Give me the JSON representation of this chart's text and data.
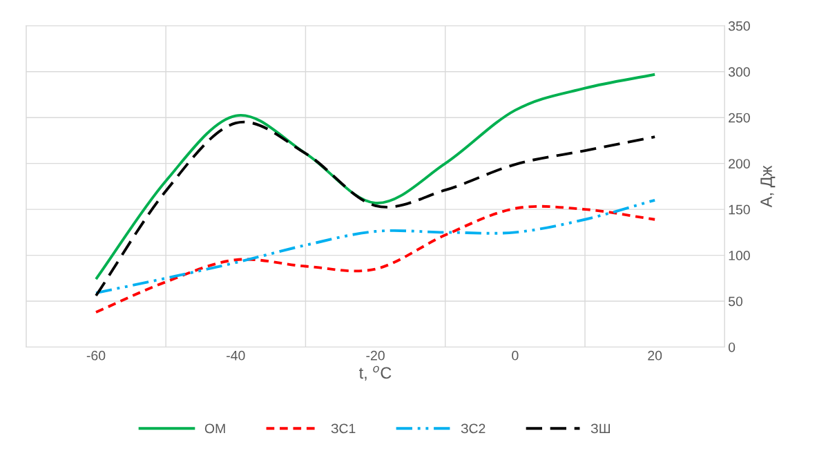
{
  "chart_data": {
    "type": "line",
    "xlabel": "t, $^{o}$C",
    "ylabel": "А, Дж",
    "x": [
      -60,
      -50,
      -40,
      -30,
      -20,
      -10,
      0,
      10,
      20
    ],
    "series": [
      {
        "name": "ОМ",
        "color": "#00b050",
        "line_style": "solid",
        "values": [
          74,
          181,
          252,
          211,
          157,
          200,
          258,
          282,
          297
        ]
      },
      {
        "name": "ЗС1",
        "color": "#ff0000",
        "line_style": "dashed",
        "values": [
          38,
          71,
          95,
          88,
          85,
          122,
          151,
          150,
          139
        ]
      },
      {
        "name": "ЗС2",
        "color": "#00b0f0",
        "line_style": "dashdotdot",
        "values": [
          59,
          75,
          92,
          111,
          126,
          125,
          125,
          139,
          160
        ]
      },
      {
        "name": "ЗШ",
        "color": "#000000",
        "line_style": "longdash",
        "values": [
          56,
          170,
          244,
          211,
          154,
          171,
          199,
          214,
          229
        ]
      }
    ],
    "xlim": [
      -70,
      30
    ],
    "xticks": [
      {
        "value": -70,
        "label": null
      },
      -60,
      {
        "value": -50,
        "label": null
      },
      -40,
      {
        "value": -30,
        "label": null
      },
      -20,
      {
        "value": -10,
        "label": null
      },
      0,
      {
        "value": 10,
        "label": null
      },
      20,
      {
        "value": 30,
        "label": null
      }
    ],
    "ylim": [
      0,
      350
    ],
    "yticks": [
      0,
      50,
      100,
      150,
      200,
      250,
      300,
      350
    ],
    "grid": true,
    "legend": "bottom",
    "marker": "none"
  }
}
